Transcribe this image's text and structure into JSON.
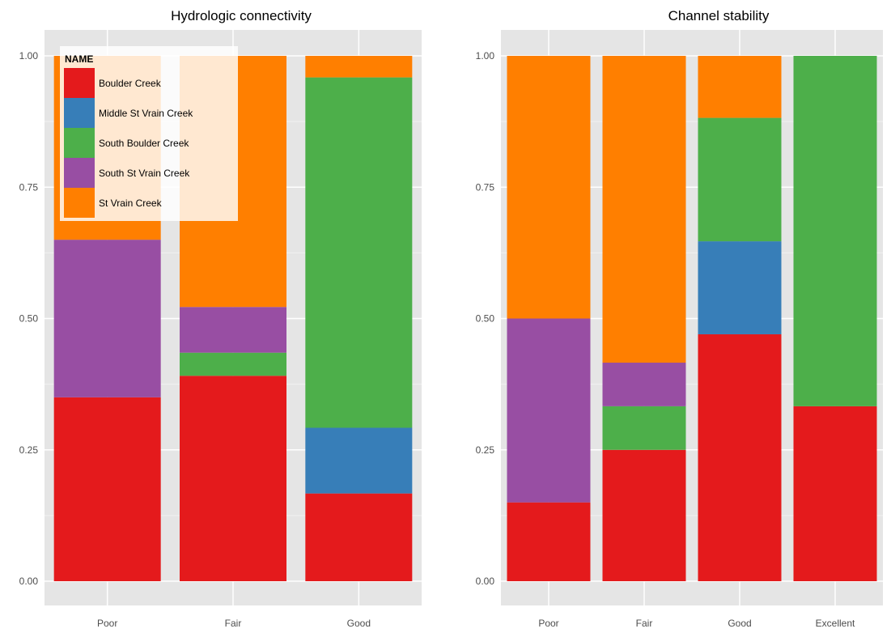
{
  "colors": {
    "Boulder Creek": "#e41a1c",
    "Middle St Vrain Creek": "#377eb8",
    "South Boulder Creek": "#4daf4a",
    "South St Vrain Creek": "#984ea3",
    "St Vrain Creek": "#ff7f00",
    "panel_background": "#e5e5e5",
    "gridline": "#ffffff"
  },
  "legend": {
    "title": "NAME",
    "items": [
      "Boulder Creek",
      "Middle St Vrain Creek",
      "South Boulder Creek",
      "South St Vrain Creek",
      "St Vrain Creek"
    ],
    "placement": "top-left inside first panel"
  },
  "chart_data": [
    {
      "type": "bar",
      "stacked": true,
      "title": "Hydrologic connectivity",
      "xlabel": "",
      "ylabel": "",
      "ylim": [
        0,
        1
      ],
      "yticks": [
        "0.00",
        "0.25",
        "0.50",
        "0.75",
        "1.00"
      ],
      "categories": [
        "Poor",
        "Fair",
        "Good"
      ],
      "grid": true,
      "series": [
        {
          "name": "Boulder Creek",
          "values": [
            0.35,
            0.391,
            0.167
          ]
        },
        {
          "name": "Middle St Vrain Creek",
          "values": [
            0.0,
            0.0,
            0.125
          ]
        },
        {
          "name": "South Boulder Creek",
          "values": [
            0.0,
            0.044,
            0.667
          ]
        },
        {
          "name": "South St Vrain Creek",
          "values": [
            0.3,
            0.087,
            0.0
          ]
        },
        {
          "name": "St Vrain Creek",
          "values": [
            0.35,
            0.478,
            0.041
          ]
        }
      ]
    },
    {
      "type": "bar",
      "stacked": true,
      "title": "Channel stability",
      "xlabel": "",
      "ylabel": "",
      "ylim": [
        0,
        1
      ],
      "yticks": [
        "0.00",
        "0.25",
        "0.50",
        "0.75",
        "1.00"
      ],
      "categories": [
        "Poor",
        "Fair",
        "Good",
        "Excellent"
      ],
      "grid": true,
      "series": [
        {
          "name": "Boulder Creek",
          "values": [
            0.15,
            0.25,
            0.47,
            0.333
          ]
        },
        {
          "name": "Middle St Vrain Creek",
          "values": [
            0.0,
            0.0,
            0.177,
            0.0
          ]
        },
        {
          "name": "South Boulder Creek",
          "values": [
            0.0,
            0.083,
            0.235,
            0.667
          ]
        },
        {
          "name": "South St Vrain Creek",
          "values": [
            0.35,
            0.083,
            0.0,
            0.0
          ]
        },
        {
          "name": "St Vrain Creek",
          "values": [
            0.5,
            0.584,
            0.118,
            0.0
          ]
        }
      ]
    }
  ]
}
